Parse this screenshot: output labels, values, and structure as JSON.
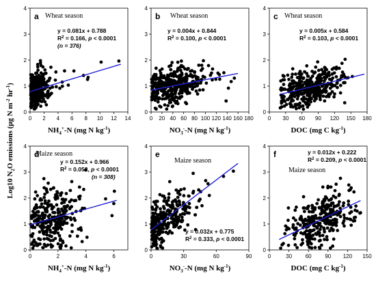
{
  "ylabel_text": "Log10 N",
  "ylabel_sub": "2",
  "ylabel_tail": "O emissions (μg N m",
  "ylabel_sup1": "-2",
  "ylabel_mid": " hr",
  "ylabel_sup2": "-1",
  "ylabel_end": ")",
  "colors": {
    "points": "#000000",
    "fit_line": "#1f1fd6"
  },
  "chart_data": [
    {
      "id": "a",
      "type": "scatter",
      "letter": "a",
      "season": "Wheat season",
      "xlabel_parts": [
        "NH",
        "4",
        "+",
        "-N (mg N kg",
        "-1",
        ")"
      ],
      "xlim": [
        0,
        14
      ],
      "xticks": [
        0,
        2,
        4,
        6,
        8,
        10,
        12,
        14
      ],
      "ylim": [
        0,
        4
      ],
      "yticks": [
        0,
        1,
        2,
        3,
        4
      ],
      "equation": "y = 0.081x + 0.788",
      "r2_label": "R",
      "r2_sup": "2",
      "r2_value": " = 0.166, ",
      "p_label": "p",
      "p_value": " < 0.0001",
      "n_label": "(n = 376)",
      "fit": {
        "slope": 0.081,
        "intercept": 0.788,
        "x_range": [
          0,
          13
        ]
      },
      "cloud": {
        "n": 376,
        "x_center": 0.9,
        "x_spread": 0.9,
        "x_min": 0.1,
        "x_max": 13,
        "y_spread": 0.35,
        "y_min": 0.1,
        "y_max": 2.1,
        "seed": 11
      }
    },
    {
      "id": "b",
      "type": "scatter",
      "letter": "b",
      "season": "Wheat season",
      "xlabel_parts": [
        "NO",
        "3",
        "-",
        "-N (mg N kg",
        "-1",
        ")"
      ],
      "xlim": [
        0,
        180
      ],
      "xticks": [
        0,
        20,
        40,
        60,
        80,
        100,
        120,
        140,
        160,
        180
      ],
      "ylim": [
        0,
        4
      ],
      "yticks": [
        0,
        1,
        2,
        3,
        4
      ],
      "equation": "y = 0.004x + 0.844",
      "r2_label": "R",
      "r2_sup": "2",
      "r2_value": " = 0.100, ",
      "p_label": "p",
      "p_value": " < 0.0001",
      "n_label": "",
      "fit": {
        "slope": 0.004,
        "intercept": 0.844,
        "x_range": [
          0,
          160
        ]
      },
      "cloud": {
        "n": 376,
        "x_center": 40,
        "x_spread": 30,
        "x_min": 1,
        "x_max": 160,
        "y_spread": 0.35,
        "y_min": 0.1,
        "y_max": 2.0,
        "seed": 23
      }
    },
    {
      "id": "c",
      "type": "scatter",
      "letter": "c",
      "season": "Wheat season",
      "xlabel_parts": [
        "DOC (mg C kg",
        "-1",
        ")"
      ],
      "xlim": [
        0,
        180
      ],
      "xticks": [
        0,
        30,
        60,
        90,
        120,
        150,
        180
      ],
      "ylim": [
        0,
        4
      ],
      "yticks": [
        0,
        1,
        2,
        3,
        4
      ],
      "equation": "y = 0.005x + 0.584",
      "r2_label": "R",
      "r2_sup": "2",
      "r2_value": " = 0.103, ",
      "p_label": "p",
      "p_value": " < 0.0001",
      "n_label": "",
      "fit": {
        "slope": 0.005,
        "intercept": 0.584,
        "x_range": [
          20,
          175
        ]
      },
      "cloud": {
        "n": 376,
        "x_center": 75,
        "x_spread": 28,
        "x_min": 20,
        "x_max": 170,
        "y_spread": 0.35,
        "y_min": 0.1,
        "y_max": 2.1,
        "seed": 37
      }
    },
    {
      "id": "d",
      "type": "scatter",
      "letter": "d",
      "season": "Maize season",
      "xlabel_parts": [
        "NH",
        "4",
        "+",
        "-N (mg N kg",
        "-1",
        ")"
      ],
      "xlim": [
        0,
        7
      ],
      "xticks": [
        0,
        2,
        4,
        6
      ],
      "ylim": [
        0,
        4
      ],
      "yticks": [
        0,
        1,
        2,
        3,
        4
      ],
      "equation": "y = 0.152x + 0.966",
      "r2_label": "R",
      "r2_sup": "2",
      "r2_value": " = 0.052, ",
      "p_label": "p",
      "p_value": " < 0.0001",
      "n_label": "(n = 308)",
      "fit": {
        "slope": 0.152,
        "intercept": 0.966,
        "x_range": [
          0,
          6.2
        ]
      },
      "cloud": {
        "n": 308,
        "x_center": 1.6,
        "x_spread": 1.0,
        "x_min": 0.05,
        "x_max": 6.2,
        "y_spread": 0.65,
        "y_min": 0.05,
        "y_max": 3.3,
        "seed": 53
      }
    },
    {
      "id": "e",
      "type": "scatter",
      "letter": "e",
      "season": "Maize season",
      "xlabel_parts": [
        "NO",
        "3",
        "-",
        "-N (mg N kg",
        "-1",
        ")"
      ],
      "xlim": [
        0,
        90
      ],
      "xticks": [
        0,
        30,
        60,
        90
      ],
      "ylim": [
        0,
        4
      ],
      "yticks": [
        0,
        1,
        2,
        3,
        4
      ],
      "equation": "y = 0.032x + 0.775",
      "r2_label": "R",
      "r2_sup": "2",
      "r2_value": " = 0.333, ",
      "p_label": "p",
      "p_value": " < 0.0001",
      "n_label": "",
      "fit": {
        "slope": 0.032,
        "intercept": 0.775,
        "x_range": [
          0,
          80
        ]
      },
      "cloud": {
        "n": 308,
        "x_center": 12,
        "x_spread": 14,
        "x_min": 0.5,
        "x_max": 78,
        "y_spread": 0.45,
        "y_min": 0.05,
        "y_max": 3.3,
        "seed": 71
      }
    },
    {
      "id": "f",
      "type": "scatter",
      "letter": "f",
      "season": "Maize season",
      "xlabel_parts": [
        "DOC (mg C kg",
        "-1",
        ")"
      ],
      "xlim": [
        0,
        150
      ],
      "xticks": [
        0,
        30,
        60,
        90,
        120,
        150
      ],
      "ylim": [
        0,
        4
      ],
      "yticks": [
        0,
        1,
        2,
        3,
        4
      ],
      "equation": "y = 0.012x + 0.222",
      "r2_label": "R",
      "r2_sup": "2",
      "r2_value": " = 0.209, ",
      "p_label": "p",
      "p_value": " < 0.0001",
      "n_label": "",
      "fit": {
        "slope": 0.012,
        "intercept": 0.222,
        "x_range": [
          15,
          140
        ]
      },
      "cloud": {
        "n": 308,
        "x_center": 80,
        "x_spread": 25,
        "x_min": 12,
        "x_max": 140,
        "y_spread": 0.55,
        "y_min": 0.05,
        "y_max": 3.3,
        "seed": 89
      }
    }
  ]
}
